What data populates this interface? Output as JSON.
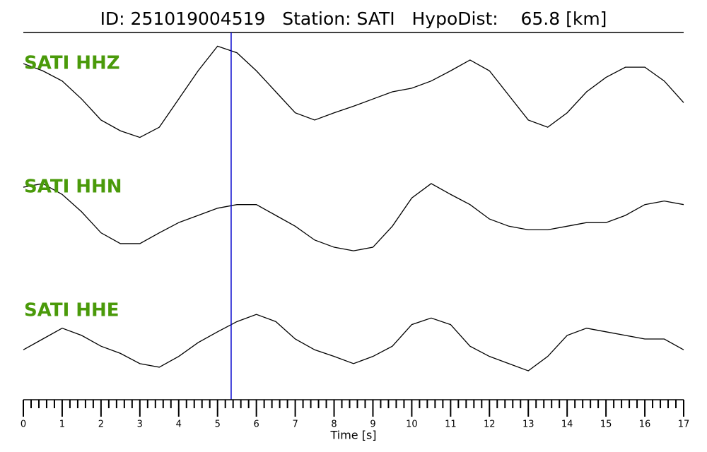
{
  "chart_data": {
    "type": "line",
    "layout": "stacked",
    "title": "ID: 251019004519   Station: SATI   HypoDist:    65.8 [km]",
    "xlabel": "Time [s]",
    "x": [
      0,
      0.5,
      1,
      1.5,
      2,
      2.5,
      3,
      3.5,
      4,
      4.5,
      5,
      5.5,
      6,
      6.5,
      7,
      7.5,
      8,
      8.5,
      9,
      9.5,
      10,
      10.5,
      11,
      11.5,
      12,
      12.5,
      13,
      13.5,
      14,
      14.5,
      15,
      15.5,
      16,
      16.5,
      17
    ],
    "xlim": [
      0,
      17
    ],
    "xticks": [
      0,
      1,
      2,
      3,
      4,
      5,
      6,
      7,
      8,
      9,
      10,
      11,
      12,
      13,
      14,
      15,
      16,
      17
    ],
    "xminorticks": [
      0.2,
      0.4,
      0.6,
      0.8,
      1.2,
      1.4,
      1.6,
      1.8,
      2.2,
      2.4,
      2.6,
      2.8,
      3.2,
      3.4,
      3.6,
      3.8,
      4.2,
      4.4,
      4.6,
      4.8,
      5.2,
      5.4,
      5.6,
      5.8,
      6.2,
      6.4,
      6.6,
      6.8,
      7.2,
      7.4,
      7.6,
      7.8,
      8.2,
      8.4,
      8.6,
      8.8,
      9.2,
      9.4,
      9.6,
      9.8,
      10.2,
      10.4,
      10.6,
      10.8,
      11.2,
      11.4,
      11.6,
      11.8,
      12.2,
      12.4,
      12.6,
      12.8,
      13.2,
      13.4,
      13.6,
      13.8,
      14.2,
      14.4,
      14.6,
      14.8,
      15.2,
      15.4,
      15.6,
      15.8,
      16.2,
      16.4,
      16.6,
      16.8
    ],
    "ylim": [
      -1,
      1
    ],
    "label_color": "#4a9a0a",
    "series": [
      {
        "name": "SATI HHZ",
        "color": "#000000",
        "values": [
          0.47,
          0.35,
          0.18,
          -0.12,
          -0.47,
          -0.65,
          -0.76,
          -0.59,
          -0.12,
          0.35,
          0.76,
          0.65,
          0.35,
          0,
          -0.35,
          -0.47,
          -0.35,
          -0.24,
          -0.12,
          0,
          0.06,
          0.18,
          0.35,
          0.53,
          0.35,
          -0.06,
          -0.47,
          -0.59,
          -0.35,
          0,
          0.24,
          0.41,
          0.41,
          0.18,
          -0.18
        ]
      },
      {
        "name": "SATI HHN",
        "color": "#000000",
        "values": [
          0.47,
          0.53,
          0.35,
          0.06,
          -0.29,
          -0.47,
          -0.47,
          -0.29,
          -0.12,
          0,
          0.12,
          0.18,
          0.18,
          0,
          -0.18,
          -0.41,
          -0.53,
          -0.59,
          -0.53,
          -0.18,
          0.29,
          0.53,
          0.35,
          0.18,
          -0.06,
          -0.18,
          -0.24,
          -0.24,
          -0.18,
          -0.12,
          -0.12,
          0,
          0.18,
          0.24,
          0.18
        ]
      },
      {
        "name": "SATI HHE",
        "color": "#000000",
        "values": [
          -0.18,
          0,
          0.18,
          0.06,
          -0.12,
          -0.24,
          -0.41,
          -0.47,
          -0.29,
          -0.06,
          0.12,
          0.29,
          0.41,
          0.29,
          0,
          -0.18,
          -0.29,
          -0.41,
          -0.29,
          -0.12,
          0.24,
          0.35,
          0.24,
          -0.12,
          -0.29,
          -0.41,
          -0.53,
          -0.29,
          0.06,
          0.18,
          0.12,
          0.06,
          0,
          0,
          -0.18
        ]
      }
    ],
    "pick": {
      "x": 5.35,
      "color": "#0000cc"
    }
  }
}
